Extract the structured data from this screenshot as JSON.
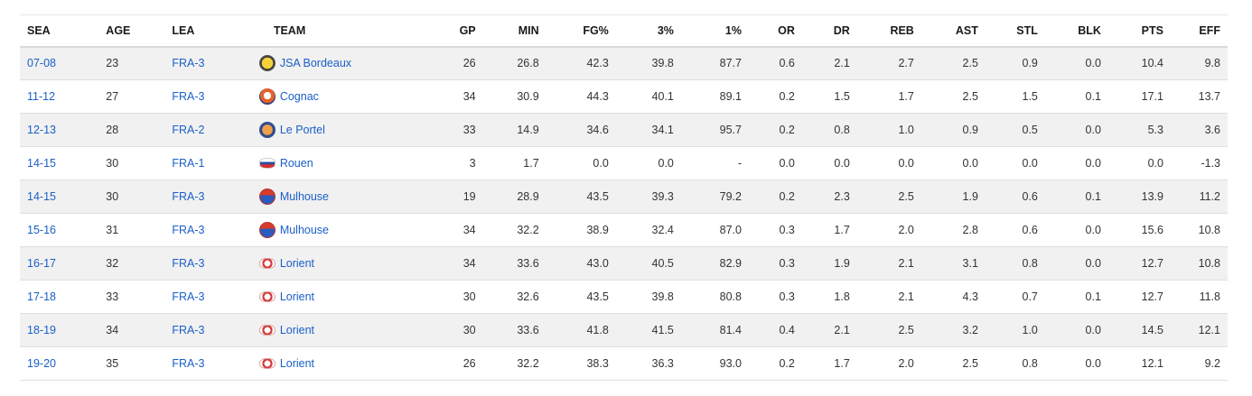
{
  "columns": [
    "SEA",
    "AGE",
    "LEA",
    "TEAM",
    "GP",
    "MIN",
    "FG%",
    "3%",
    "1%",
    "OR",
    "DR",
    "REB",
    "AST",
    "STL",
    "BLK",
    "PTS",
    "EFF"
  ],
  "colors": {
    "link": "#1a5fc8",
    "row_alt": "#f1f1f1"
  },
  "rows": [
    {
      "sea": "07-08",
      "age": "23",
      "lea": "FRA-3",
      "team": "JSA Bordeaux",
      "team_icon": "jsa-bordeaux-logo",
      "gp": "26",
      "min": "26.8",
      "fg": "42.3",
      "three": "39.8",
      "one": "87.7",
      "or": "0.6",
      "dr": "2.1",
      "reb": "2.7",
      "ast": "2.5",
      "stl": "0.9",
      "blk": "0.0",
      "pts": "10.4",
      "eff": "9.8"
    },
    {
      "sea": "11-12",
      "age": "27",
      "lea": "FRA-3",
      "team": "Cognac",
      "team_icon": "cognac-logo",
      "gp": "34",
      "min": "30.9",
      "fg": "44.3",
      "three": "40.1",
      "one": "89.1",
      "or": "0.2",
      "dr": "1.5",
      "reb": "1.7",
      "ast": "2.5",
      "stl": "1.5",
      "blk": "0.1",
      "pts": "17.1",
      "eff": "13.7"
    },
    {
      "sea": "12-13",
      "age": "28",
      "lea": "FRA-2",
      "team": "Le Portel",
      "team_icon": "le-portel-logo",
      "gp": "33",
      "min": "14.9",
      "fg": "34.6",
      "three": "34.1",
      "one": "95.7",
      "or": "0.2",
      "dr": "0.8",
      "reb": "1.0",
      "ast": "0.9",
      "stl": "0.5",
      "blk": "0.0",
      "pts": "5.3",
      "eff": "3.6"
    },
    {
      "sea": "14-15",
      "age": "30",
      "lea": "FRA-1",
      "team": "Rouen",
      "team_icon": "rouen-logo",
      "gp": "3",
      "min": "1.7",
      "fg": "0.0",
      "three": "0.0",
      "one": "-",
      "or": "0.0",
      "dr": "0.0",
      "reb": "0.0",
      "ast": "0.0",
      "stl": "0.0",
      "blk": "0.0",
      "pts": "0.0",
      "eff": "-1.3"
    },
    {
      "sea": "14-15",
      "age": "30",
      "lea": "FRA-3",
      "team": "Mulhouse",
      "team_icon": "mulhouse-logo",
      "gp": "19",
      "min": "28.9",
      "fg": "43.5",
      "three": "39.3",
      "one": "79.2",
      "or": "0.2",
      "dr": "2.3",
      "reb": "2.5",
      "ast": "1.9",
      "stl": "0.6",
      "blk": "0.1",
      "pts": "13.9",
      "eff": "11.2"
    },
    {
      "sea": "15-16",
      "age": "31",
      "lea": "FRA-3",
      "team": "Mulhouse",
      "team_icon": "mulhouse-logo",
      "gp": "34",
      "min": "32.2",
      "fg": "38.9",
      "three": "32.4",
      "one": "87.0",
      "or": "0.3",
      "dr": "1.7",
      "reb": "2.0",
      "ast": "2.8",
      "stl": "0.6",
      "blk": "0.0",
      "pts": "15.6",
      "eff": "10.8"
    },
    {
      "sea": "16-17",
      "age": "32",
      "lea": "FRA-3",
      "team": "Lorient",
      "team_icon": "lorient-logo",
      "gp": "34",
      "min": "33.6",
      "fg": "43.0",
      "three": "40.5",
      "one": "82.9",
      "or": "0.3",
      "dr": "1.9",
      "reb": "2.1",
      "ast": "3.1",
      "stl": "0.8",
      "blk": "0.0",
      "pts": "12.7",
      "eff": "10.8"
    },
    {
      "sea": "17-18",
      "age": "33",
      "lea": "FRA-3",
      "team": "Lorient",
      "team_icon": "lorient-logo",
      "gp": "30",
      "min": "32.6",
      "fg": "43.5",
      "three": "39.8",
      "one": "80.8",
      "or": "0.3",
      "dr": "1.8",
      "reb": "2.1",
      "ast": "4.3",
      "stl": "0.7",
      "blk": "0.1",
      "pts": "12.7",
      "eff": "11.8"
    },
    {
      "sea": "18-19",
      "age": "34",
      "lea": "FRA-3",
      "team": "Lorient",
      "team_icon": "lorient-logo",
      "gp": "30",
      "min": "33.6",
      "fg": "41.8",
      "three": "41.5",
      "one": "81.4",
      "or": "0.4",
      "dr": "2.1",
      "reb": "2.5",
      "ast": "3.2",
      "stl": "1.0",
      "blk": "0.0",
      "pts": "14.5",
      "eff": "12.1"
    },
    {
      "sea": "19-20",
      "age": "35",
      "lea": "FRA-3",
      "team": "Lorient",
      "team_icon": "lorient-logo",
      "gp": "26",
      "min": "32.2",
      "fg": "38.3",
      "three": "36.3",
      "one": "93.0",
      "or": "0.2",
      "dr": "1.7",
      "reb": "2.0",
      "ast": "2.5",
      "stl": "0.8",
      "blk": "0.0",
      "pts": "12.1",
      "eff": "9.2"
    }
  ]
}
